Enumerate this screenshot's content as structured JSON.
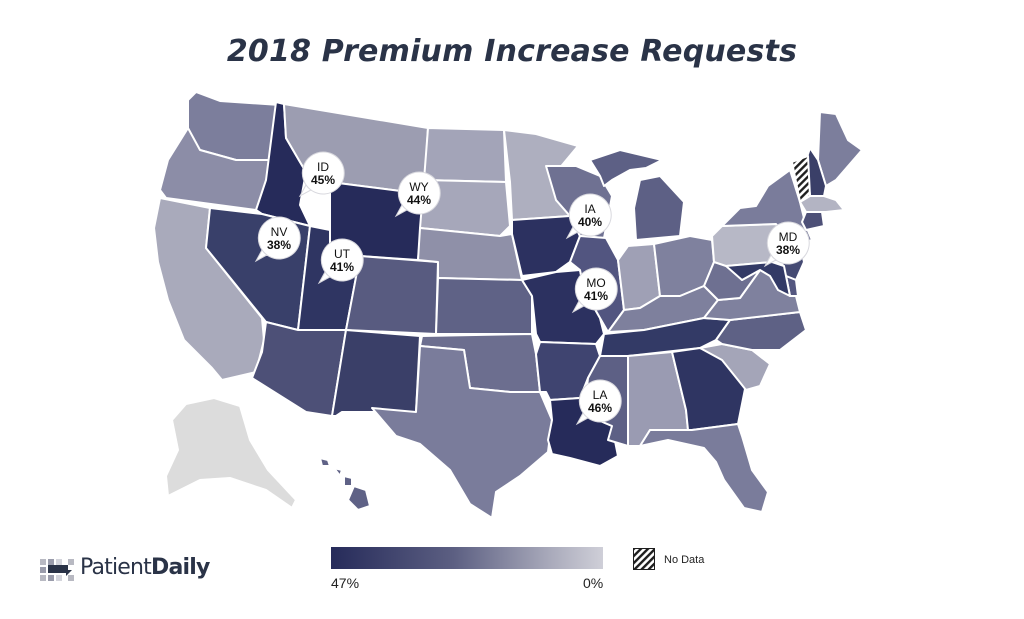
{
  "title": "2018 Premium Increase Requests",
  "logo": {
    "text_light": "Patient",
    "text_bold": "Daily"
  },
  "legend": {
    "min_label": "47%",
    "max_label": "0%",
    "no_data_label": "No Data",
    "color_high": "#262b5a",
    "color_low": "#cfcfd8"
  },
  "colors": {
    "WA": "#7c7e9c",
    "OR": "#8c8da7",
    "CA": "#a9aabb",
    "ID": "#262b5a",
    "NV": "#39406a",
    "UT": "#2f3562",
    "AZ": "#4d5077",
    "MT": "#9c9db1",
    "WY": "#262b5a",
    "CO": "#585b80",
    "NM": "#3a3f68",
    "ND": "#a3a4b8",
    "SD": "#a6a7ba",
    "NE": "#8f90a8",
    "KS": "#5f6286",
    "OK": "#6c6e8f",
    "TX": "#7a7c9b",
    "MN": "#aeafbf",
    "IA": "#2c3160",
    "MO": "#2c3160",
    "AR": "#3f4470",
    "LA": "#262b5a",
    "WI": "#6f7192",
    "IL": "#525580",
    "MS": "#5d6085",
    "MI": "#5d6085",
    "IN": "#9fa0b5",
    "OH": "#7f819e",
    "KY": "#7e809d",
    "TN": "#333a66",
    "AL": "#9a9bb2",
    "GA": "#2f3562",
    "FL": "#7a7c9b",
    "SC": "#a4a5b8",
    "NC": "#5e6185",
    "VA": "#7f819e",
    "WV": "#6e7091",
    "PA": "#b7b8c6",
    "NY": "#7a7c9b",
    "ME": "#7c7e9c",
    "NH": "#3a3f68",
    "MA": "#b3b4c3",
    "CT": "#4d5077",
    "NJ": "#454a73",
    "DE": "#545780",
    "MD": "#333a66",
    "AK": "#dcdcdc",
    "HI": "#5f6286"
  },
  "callouts": [
    {
      "state": "ID",
      "abbr": "ID",
      "pct": "45%"
    },
    {
      "state": "WY",
      "abbr": "WY",
      "pct": "44%"
    },
    {
      "state": "IA",
      "abbr": "IA",
      "pct": "40%"
    },
    {
      "state": "NV",
      "abbr": "NV",
      "pct": "38%"
    },
    {
      "state": "UT",
      "abbr": "UT",
      "pct": "41%"
    },
    {
      "state": "MD",
      "abbr": "MD",
      "pct": "38%"
    },
    {
      "state": "MO",
      "abbr": "MO",
      "pct": "41%"
    },
    {
      "state": "LA",
      "abbr": "LA",
      "pct": "46%"
    }
  ]
}
